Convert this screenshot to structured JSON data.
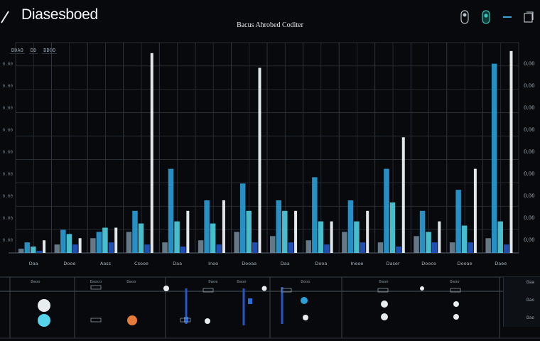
{
  "app": {
    "title": "Diasesboed"
  },
  "header": {
    "icons": [
      "menu-icon",
      "toggle-icon",
      "toggle-active-icon",
      "minimize-icon",
      "window-icon"
    ]
  },
  "chart_data": {
    "type": "bar",
    "title": "Bacus Ahrobed Coditer",
    "ytick_labels": [
      "0.00",
      "0.00",
      "0.00",
      "0.00",
      "0.00",
      "0.00",
      "0.00",
      "0.00",
      "0.00"
    ],
    "categories": [
      "Daa",
      "Dooe",
      "Aass",
      "Csooe",
      "Daa",
      "Inoo",
      "Dooaa",
      "Daa",
      "Dooa",
      "Ineoe",
      "Daser",
      "Dooce",
      "Dooae",
      "Daee"
    ],
    "ylim": [
      0,
      100
    ],
    "series": [
      {
        "values": [
          2,
          4,
          7,
          10,
          5,
          6,
          10,
          8,
          6,
          10,
          5,
          8,
          5,
          7
        ]
      },
      {
        "values": [
          5,
          11,
          10,
          20,
          40,
          25,
          33,
          25,
          36,
          25,
          40,
          20,
          30,
          90
        ]
      },
      {
        "values": [
          3,
          9,
          12,
          14,
          15,
          14,
          20,
          20,
          15,
          15,
          24,
          10,
          13,
          15
        ]
      },
      {
        "values": [
          1,
          4,
          5,
          4,
          3,
          4,
          5,
          5,
          4,
          5,
          3,
          5,
          5,
          4
        ]
      },
      {
        "values": [
          6,
          7,
          12,
          95,
          20,
          25,
          88,
          20,
          15,
          20,
          55,
          15,
          40,
          96
        ]
      }
    ],
    "grid": true,
    "colors": [
      "#6f8594",
      "#2aa0d8",
      "#4fd0e0",
      "#2456c4",
      "#eef3f6"
    ]
  },
  "toolbar": {
    "chips": [
      "DDAO",
      "DD",
      "DDOD"
    ]
  },
  "lower": {
    "labels": [
      "Daoo",
      "Daoco",
      "Daoo",
      "Daoe",
      "Daoo",
      "Dooo",
      "Daoo",
      "Daoo"
    ],
    "side": [
      "Daa",
      "Dao",
      "Dao"
    ]
  }
}
